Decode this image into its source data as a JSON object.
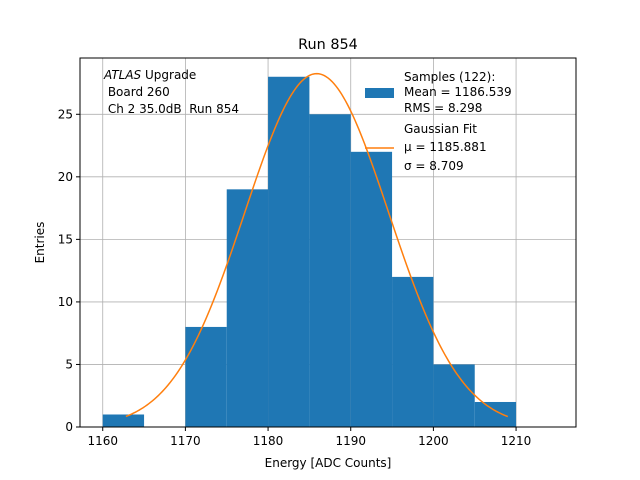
{
  "chart_data": {
    "type": "bar",
    "title": "Run 854",
    "xlabel": "Energy [ADC Counts]",
    "ylabel": "Entries",
    "xlim": [
      1157.25,
      1217.25
    ],
    "ylim": [
      0,
      29.5
    ],
    "xticks": [
      1160,
      1170,
      1180,
      1190,
      1200,
      1210
    ],
    "yticks": [
      0,
      5,
      10,
      15,
      20,
      25
    ],
    "grid": true,
    "colors": {
      "bars": "#1f77b4",
      "fit": "#ff7f0e",
      "grid": "#b0b0b0"
    },
    "histogram": {
      "name": "Samples (122):",
      "bin_edges": [
        1160,
        1165,
        1170,
        1175,
        1180,
        1185,
        1190,
        1195,
        1200,
        1205,
        1210
      ],
      "counts": [
        1,
        0,
        8,
        19,
        28,
        25,
        22,
        12,
        5,
        2
      ]
    },
    "fit": {
      "name": "Gaussian Fit",
      "type": "gaussian",
      "mu": 1185.881,
      "sigma": 8.709,
      "amplitude": 28.25,
      "x_range": [
        1162.8,
        1209.0
      ]
    },
    "legend": {
      "placement": "upper right",
      "samples_lines": [
        "Samples (122):",
        "Mean = 1186.539",
        "RMS = 8.298"
      ],
      "fit_lines": [
        "Gaussian Fit",
        "μ = 1185.881",
        "σ = 8.709"
      ]
    },
    "annotation": {
      "italic": "ATLAS",
      "line1_rest": " Upgrade",
      "line2": " Board 260",
      "line3": " Ch 2 35.0dB  Run 854"
    }
  }
}
